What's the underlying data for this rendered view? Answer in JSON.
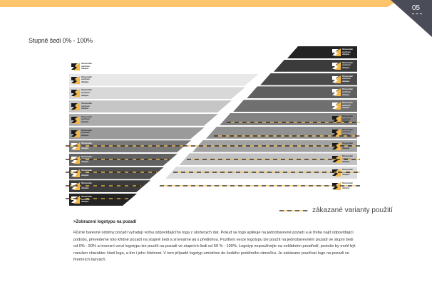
{
  "page_number": "05",
  "title": "Stupně šedi 0% - 100%",
  "logo_text": [
    "Slovenské",
    "centrum",
    "dizajnu"
  ],
  "left_shades": [
    "#ffffff",
    "#e8e8e8",
    "#d8d8d8",
    "#c6c6c6",
    "#acacac",
    "#9a9a9a",
    "#7a7a7a",
    "#626262",
    "#4f4f4f",
    "#3b3b3b",
    "#232323"
  ],
  "right_shades": [
    "#232323",
    "#3b3b3b",
    "#4b4b4b",
    "#5f5f5f",
    "#707070",
    "#828282",
    "#919191",
    "#a2a2a2",
    "#c2c2c2",
    "#dcdcdc",
    "#ffffff"
  ],
  "colors": {
    "accent": "#f2b84b",
    "bar": "#fcc56b",
    "corner": "#4a4d57"
  },
  "legend": "zákazané varianty použití",
  "heading": ">Zobrazení logotypu na pozadí",
  "paragraph": "Různé barevné odstíny pozadí vyžadují volbu odpovídajícího loga z uložených dat. Pokud se logo aplikuje na jednobarevné pozadí a je třeba najít odpovídající podobu, převedeme toto křídné pozadí na stupně šedi a srovnáme jej s předlohou. Pozitivní verze logotypu lze použít na jednobarevném pozadí ve stupni šedi od 0% - 50% a inverzní verzi logotypu lze použít na pozadí ve stupních šedi od 50 % - 100%. Logotyp nepoužívejte na neklidném prostředí, protože by mohl být narušen charakter částí loga, a tím i jeho čitelnost. V tom případě logotyp umístíme do šedého podélného rámečku. Je zakázano používat logo na pozadí ve firemních barvách."
}
